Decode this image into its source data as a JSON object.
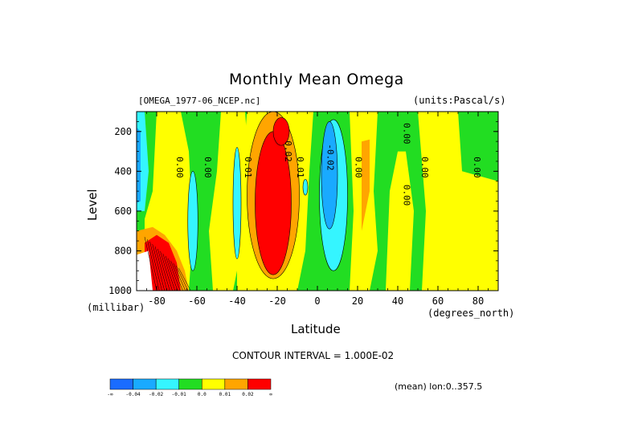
{
  "chart_data": {
    "type": "heatmap",
    "title": "Monthly Mean Omega",
    "source_label": "[OMEGA_1977-06_NCEP.nc]",
    "units_label": "(units:Pascal/s)",
    "xlabel": "Latitude",
    "ylabel": "Level",
    "x_unit": "(degrees_north)",
    "y_unit": "(millibar)",
    "xlim": [
      -90,
      90
    ],
    "ylim": [
      1000,
      100
    ],
    "y_reversed": true,
    "x_ticks": [
      "-80",
      "-60",
      "-40",
      "-20",
      "0",
      "20",
      "40",
      "60",
      "80"
    ],
    "y_ticks": [
      "200",
      "400",
      "600",
      "800",
      "1000"
    ],
    "contour_interval_text": "CONTOUR INTERVAL = 1.000E-02",
    "mean_note": "(mean) lon:0..357.5",
    "contour_labels": [
      {
        "text": "0.00",
        "lat": -70,
        "lev": 380
      },
      {
        "text": "0.00",
        "lat": -56,
        "lev": 380
      },
      {
        "text": "0.01",
        "lat": -36,
        "lev": 380
      },
      {
        "text": "0.02",
        "lat": -16,
        "lev": 300
      },
      {
        "text": "0.01",
        "lat": -10,
        "lev": 380
      },
      {
        "text": "-0.02",
        "lat": 5,
        "lev": 330
      },
      {
        "text": "0.00",
        "lat": 19,
        "lev": 380
      },
      {
        "text": "0.00",
        "lat": 43,
        "lev": 520
      },
      {
        "text": "0.00",
        "lat": 43,
        "lev": 210
      },
      {
        "text": "0.00",
        "lat": 52,
        "lev": 380
      },
      {
        "text": "0.00",
        "lat": 78,
        "lev": 380
      }
    ],
    "colorbar": {
      "colors": [
        "#1a6cff",
        "#19aaff",
        "#35f5ff",
        "#22dd22",
        "#ffff00",
        "#ffa500",
        "#ff0000"
      ],
      "labels": [
        "-∞",
        "-0.04",
        "-0.02",
        "-0.01",
        "0.0",
        "0.01",
        "0.02",
        "∞"
      ]
    },
    "colors": {
      "green": "#22dd22",
      "yellow": "#ffff00",
      "cyan": "#35f5ff",
      "light_blue": "#19aaff",
      "blue": "#1a6cff",
      "orange": "#ffa500",
      "red": "#ff0000",
      "white": "#ffffff"
    }
  }
}
